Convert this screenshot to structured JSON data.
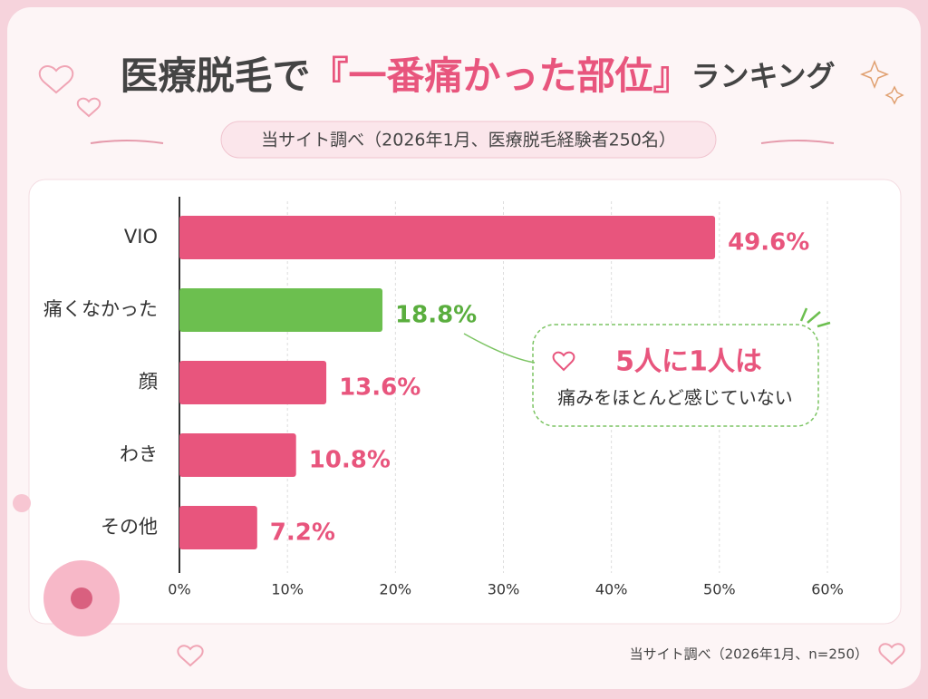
{
  "chart_data": {
    "type": "bar",
    "orientation": "horizontal",
    "title_parts": [
      "医療脱毛で",
      "『一番痛かった部位』",
      "ランキング"
    ],
    "subtitle": "当サイト調べ（2026年1月、医療脱毛経験者250名）",
    "categories": [
      "VIO",
      "痛くなかった",
      "顔",
      "わき",
      "その他"
    ],
    "values": [
      49.6,
      18.8,
      13.6,
      10.8,
      7.2
    ],
    "value_labels": [
      "49.6%",
      "18.8%",
      "13.6%",
      "10.8%",
      "7.2%"
    ],
    "colors": [
      "#e8557d",
      "#6cbf4f",
      "#e8557d",
      "#e8557d",
      "#e8557d"
    ],
    "xlim": [
      0,
      60
    ],
    "xticks": [
      {
        "value": 0,
        "label": "0%"
      },
      {
        "value": 10,
        "label": "10%"
      },
      {
        "value": 20,
        "label": "20%"
      },
      {
        "value": 30,
        "label": "30%"
      },
      {
        "value": 40,
        "label": "40%"
      },
      {
        "value": 50,
        "label": "50%"
      },
      {
        "value": 60,
        "label": "60%"
      }
    ],
    "grid": true,
    "annotation": [
      "5人に1人は",
      "痛みをほとんど感じていない"
    ],
    "footnote": "当サイト調べ（2026年1月、n=250）"
  }
}
